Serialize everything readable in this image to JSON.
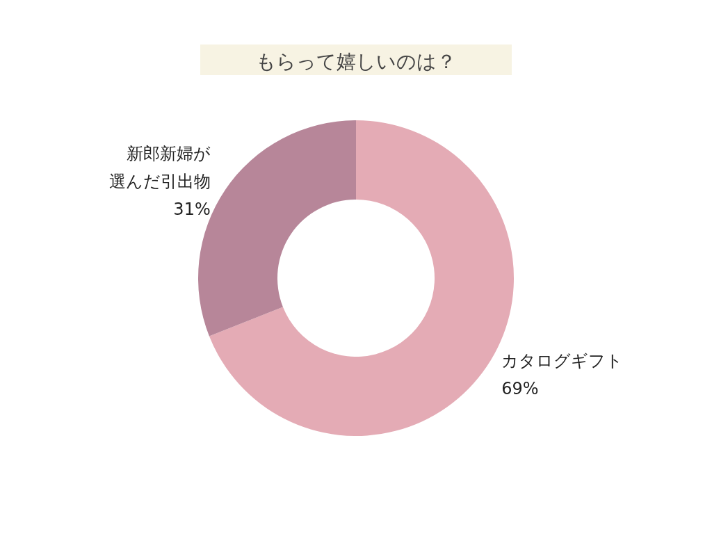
{
  "chart_data": {
    "type": "donut",
    "title": "もらって嬉しいのは？",
    "categories": [
      "カタログギフト",
      "新郎新婦が選んだ引出物"
    ],
    "values": [
      69,
      31
    ],
    "value_labels": [
      "69%",
      "31%"
    ],
    "colors": [
      "#e4abb5",
      "#b78699"
    ],
    "legend": false
  }
}
